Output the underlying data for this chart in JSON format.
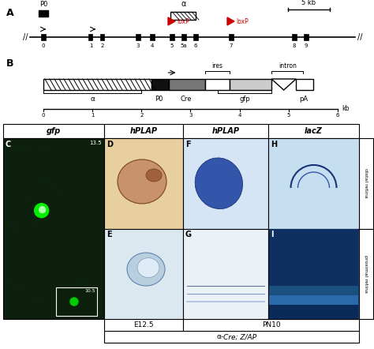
{
  "fig_width": 4.74,
  "fig_height": 4.42,
  "colors": {
    "red": "#cc0000",
    "black": "#000000",
    "white": "#ffffff",
    "light_gray": "#cccccc",
    "gray": "#888888",
    "dark_gray": "#555555",
    "green_gfp": "#00cc00",
    "embryo_bg": "#d4956a",
    "histology_blue": "#6699cc",
    "histology_dark": "#003366",
    "section_bg": "#e8f4f8",
    "border": "#333333"
  },
  "panel_A_label": "A",
  "panel_B_label": "B",
  "exon_labels": [
    "0",
    "1",
    "2",
    "3",
    "4",
    "5",
    "5a",
    "6",
    "7",
    "8",
    "9"
  ],
  "col_headers": [
    "gfp",
    "hPLAP",
    "hPLAP",
    "lacZ"
  ],
  "row_labels_right": [
    "distal retina",
    "proximal retina"
  ],
  "panel_labels": [
    "C",
    "D",
    "E",
    "F",
    "G",
    "H",
    "I"
  ],
  "bottom_labels": [
    "E12.5",
    "PN10"
  ],
  "footer_label": "α-Cre; Z/AP",
  "alpha_label": "α",
  "scale_label_A": "5 kb",
  "scale_label_B": "kb",
  "age_C": "13.5",
  "age_inset": "10.5"
}
